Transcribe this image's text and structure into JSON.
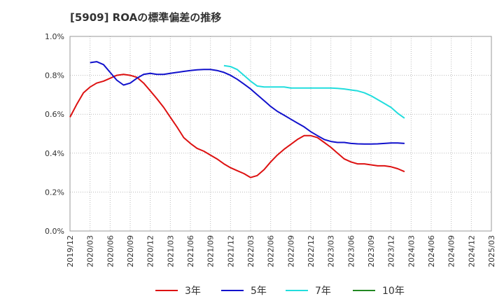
{
  "chart_data": {
    "type": "line",
    "title": "[5909]  ROAの標準偏差の推移",
    "x": [
      "2019/12",
      "2020/03",
      "2020/06",
      "2020/09",
      "2020/12",
      "2021/03",
      "2021/06",
      "2021/09",
      "2021/12",
      "2022/03",
      "2022/06",
      "2022/09",
      "2022/12",
      "2023/03",
      "2023/06",
      "2023/09",
      "2023/12",
      "2024/03",
      "2024/06",
      "2024/09",
      "2024/12",
      "2025/03"
    ],
    "ylim": [
      0,
      1.0
    ],
    "yticks": [
      "0.0%",
      "0.2%",
      "0.4%",
      "0.6%",
      "0.8%",
      "1.0%"
    ],
    "grid": true,
    "legend_position": "bottom",
    "series": [
      {
        "name": "3年",
        "color": "#dd1111",
        "points": [
          [
            0,
            0.585
          ],
          [
            0.33,
            0.65
          ],
          [
            0.67,
            0.71
          ],
          [
            1,
            0.74
          ],
          [
            1.33,
            0.76
          ],
          [
            1.67,
            0.77
          ],
          [
            2,
            0.785
          ],
          [
            2.33,
            0.8
          ],
          [
            2.67,
            0.805
          ],
          [
            3,
            0.8
          ],
          [
            3.33,
            0.79
          ],
          [
            3.67,
            0.76
          ],
          [
            4,
            0.72
          ],
          [
            4.33,
            0.68
          ],
          [
            4.67,
            0.635
          ],
          [
            5,
            0.585
          ],
          [
            5.33,
            0.535
          ],
          [
            5.67,
            0.48
          ],
          [
            6,
            0.45
          ],
          [
            6.33,
            0.425
          ],
          [
            6.67,
            0.41
          ],
          [
            7,
            0.39
          ],
          [
            7.33,
            0.37
          ],
          [
            7.67,
            0.345
          ],
          [
            8,
            0.325
          ],
          [
            8.33,
            0.31
          ],
          [
            8.67,
            0.295
          ],
          [
            9,
            0.275
          ],
          [
            9.33,
            0.285
          ],
          [
            9.67,
            0.315
          ],
          [
            10,
            0.355
          ],
          [
            10.33,
            0.39
          ],
          [
            10.67,
            0.42
          ],
          [
            11,
            0.445
          ],
          [
            11.33,
            0.47
          ],
          [
            11.67,
            0.49
          ],
          [
            12,
            0.49
          ],
          [
            12.33,
            0.48
          ],
          [
            12.67,
            0.455
          ],
          [
            13,
            0.43
          ],
          [
            13.33,
            0.4
          ],
          [
            13.67,
            0.37
          ],
          [
            14,
            0.355
          ],
          [
            14.33,
            0.345
          ],
          [
            14.67,
            0.345
          ],
          [
            15,
            0.34
          ],
          [
            15.33,
            0.335
          ],
          [
            15.67,
            0.335
          ],
          [
            16,
            0.33
          ],
          [
            16.33,
            0.32
          ],
          [
            16.67,
            0.305
          ]
        ]
      },
      {
        "name": "5年",
        "color": "#1111cc",
        "points": [
          [
            1,
            0.865
          ],
          [
            1.33,
            0.87
          ],
          [
            1.67,
            0.855
          ],
          [
            2,
            0.815
          ],
          [
            2.33,
            0.775
          ],
          [
            2.67,
            0.75
          ],
          [
            3,
            0.76
          ],
          [
            3.33,
            0.785
          ],
          [
            3.67,
            0.805
          ],
          [
            4,
            0.81
          ],
          [
            4.33,
            0.805
          ],
          [
            4.67,
            0.805
          ],
          [
            5,
            0.81
          ],
          [
            5.33,
            0.815
          ],
          [
            5.67,
            0.82
          ],
          [
            6,
            0.825
          ],
          [
            6.33,
            0.828
          ],
          [
            6.67,
            0.83
          ],
          [
            7,
            0.83
          ],
          [
            7.33,
            0.825
          ],
          [
            7.67,
            0.815
          ],
          [
            8,
            0.8
          ],
          [
            8.33,
            0.78
          ],
          [
            8.67,
            0.755
          ],
          [
            9,
            0.73
          ],
          [
            9.33,
            0.7
          ],
          [
            9.67,
            0.67
          ],
          [
            10,
            0.64
          ],
          [
            10.33,
            0.615
          ],
          [
            10.67,
            0.595
          ],
          [
            11,
            0.575
          ],
          [
            11.33,
            0.555
          ],
          [
            11.67,
            0.535
          ],
          [
            12,
            0.51
          ],
          [
            12.33,
            0.49
          ],
          [
            12.67,
            0.47
          ],
          [
            13,
            0.46
          ],
          [
            13.33,
            0.455
          ],
          [
            13.67,
            0.455
          ],
          [
            14,
            0.45
          ],
          [
            14.33,
            0.448
          ],
          [
            14.67,
            0.447
          ],
          [
            15,
            0.447
          ],
          [
            15.33,
            0.448
          ],
          [
            15.67,
            0.45
          ],
          [
            16,
            0.452
          ],
          [
            16.33,
            0.452
          ],
          [
            16.67,
            0.45
          ]
        ]
      },
      {
        "name": "7年",
        "color": "#22dddd",
        "points": [
          [
            7.67,
            0.85
          ],
          [
            8,
            0.845
          ],
          [
            8.33,
            0.83
          ],
          [
            8.67,
            0.8
          ],
          [
            9,
            0.77
          ],
          [
            9.33,
            0.745
          ],
          [
            9.67,
            0.74
          ],
          [
            10,
            0.74
          ],
          [
            10.33,
            0.74
          ],
          [
            10.67,
            0.74
          ],
          [
            11,
            0.735
          ],
          [
            11.33,
            0.735
          ],
          [
            11.67,
            0.735
          ],
          [
            12,
            0.735
          ],
          [
            12.33,
            0.735
          ],
          [
            12.67,
            0.735
          ],
          [
            13,
            0.735
          ],
          [
            13.33,
            0.733
          ],
          [
            13.67,
            0.73
          ],
          [
            14,
            0.725
          ],
          [
            14.33,
            0.72
          ],
          [
            14.67,
            0.71
          ],
          [
            15,
            0.695
          ],
          [
            15.33,
            0.675
          ],
          [
            15.67,
            0.655
          ],
          [
            16,
            0.635
          ],
          [
            16.33,
            0.605
          ],
          [
            16.67,
            0.58
          ]
        ]
      },
      {
        "name": "10年",
        "color": "#228822",
        "points": []
      }
    ]
  }
}
